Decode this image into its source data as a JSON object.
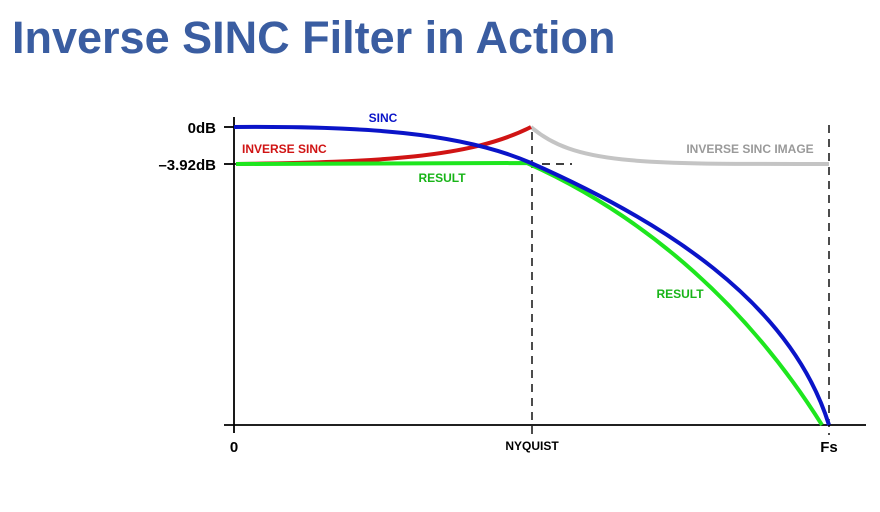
{
  "title": "Inverse SINC Filter in Action",
  "colors": {
    "title": "#3a5da1",
    "sinc": "#0a14c8",
    "inverse_sinc": "#d01414",
    "result": "#1ee61e",
    "image": "#c4c4c4",
    "axis": "#000000",
    "result_label": "#18b418",
    "image_label": "#9a9a9a"
  },
  "labels": {
    "y_top": "0dB",
    "y_mid": "–3.92dB",
    "x_zero": "0",
    "x_nyquist": "NYQUIST",
    "x_fs": "Fs",
    "sinc": "SINC",
    "inverse_sinc": "INVERSE SINC",
    "result_upper": "RESULT",
    "result_lower": "RESULT",
    "inverse_sinc_image": "INVERSE SINC IMAGE"
  }
}
